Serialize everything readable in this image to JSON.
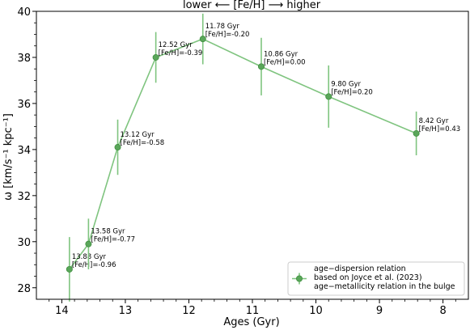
{
  "chart_data": {
    "type": "line",
    "title": "lower ⟵ [Fe/H] ⟶ higher",
    "xlabel": "Ages (Gyr)",
    "ylabel": "ω [km/s⁻¹ kpc⁻¹]",
    "xlim": [
      14.4,
      7.6
    ],
    "ylim": [
      27.5,
      40.0
    ],
    "x_inverted": true,
    "xticks": [
      14,
      13,
      12,
      11,
      10,
      9,
      8
    ],
    "yticks": [
      28,
      30,
      32,
      34,
      36,
      38,
      40
    ],
    "grid": false,
    "legend_position": "bottom-right",
    "color": "#7fc47f",
    "series": [
      {
        "name": "age−dispersion relation\nbased on Joyce et al. (2023)\nage−metallicity relation in the bulge",
        "x": [
          13.88,
          13.58,
          13.12,
          12.52,
          11.78,
          10.86,
          9.8,
          8.42
        ],
        "y": [
          28.8,
          29.9,
          34.1,
          38.0,
          38.8,
          37.6,
          36.3,
          34.7
        ],
        "yerr": [
          1.4,
          1.1,
          1.2,
          1.1,
          1.1,
          1.25,
          1.35,
          0.95
        ],
        "labels": [
          [
            "13.88 Gyr",
            "[Fe/H]=-0.96"
          ],
          [
            "13.58 Gyr",
            "[Fe/H]=-0.77"
          ],
          [
            "13.12 Gyr",
            "[Fe/H]=-0.58"
          ],
          [
            "12.52 Gyr",
            "[Fe/H]=-0.39"
          ],
          [
            "11.78 Gyr",
            "[Fe/H]=-0.20"
          ],
          [
            "10.86 Gyr",
            "[Fe/H]=0.00"
          ],
          [
            "9.80 Gyr",
            "[Fe/H]=0.20"
          ],
          [
            "8.42 Gyr",
            "[Fe/H]=0.43"
          ]
        ]
      }
    ]
  }
}
